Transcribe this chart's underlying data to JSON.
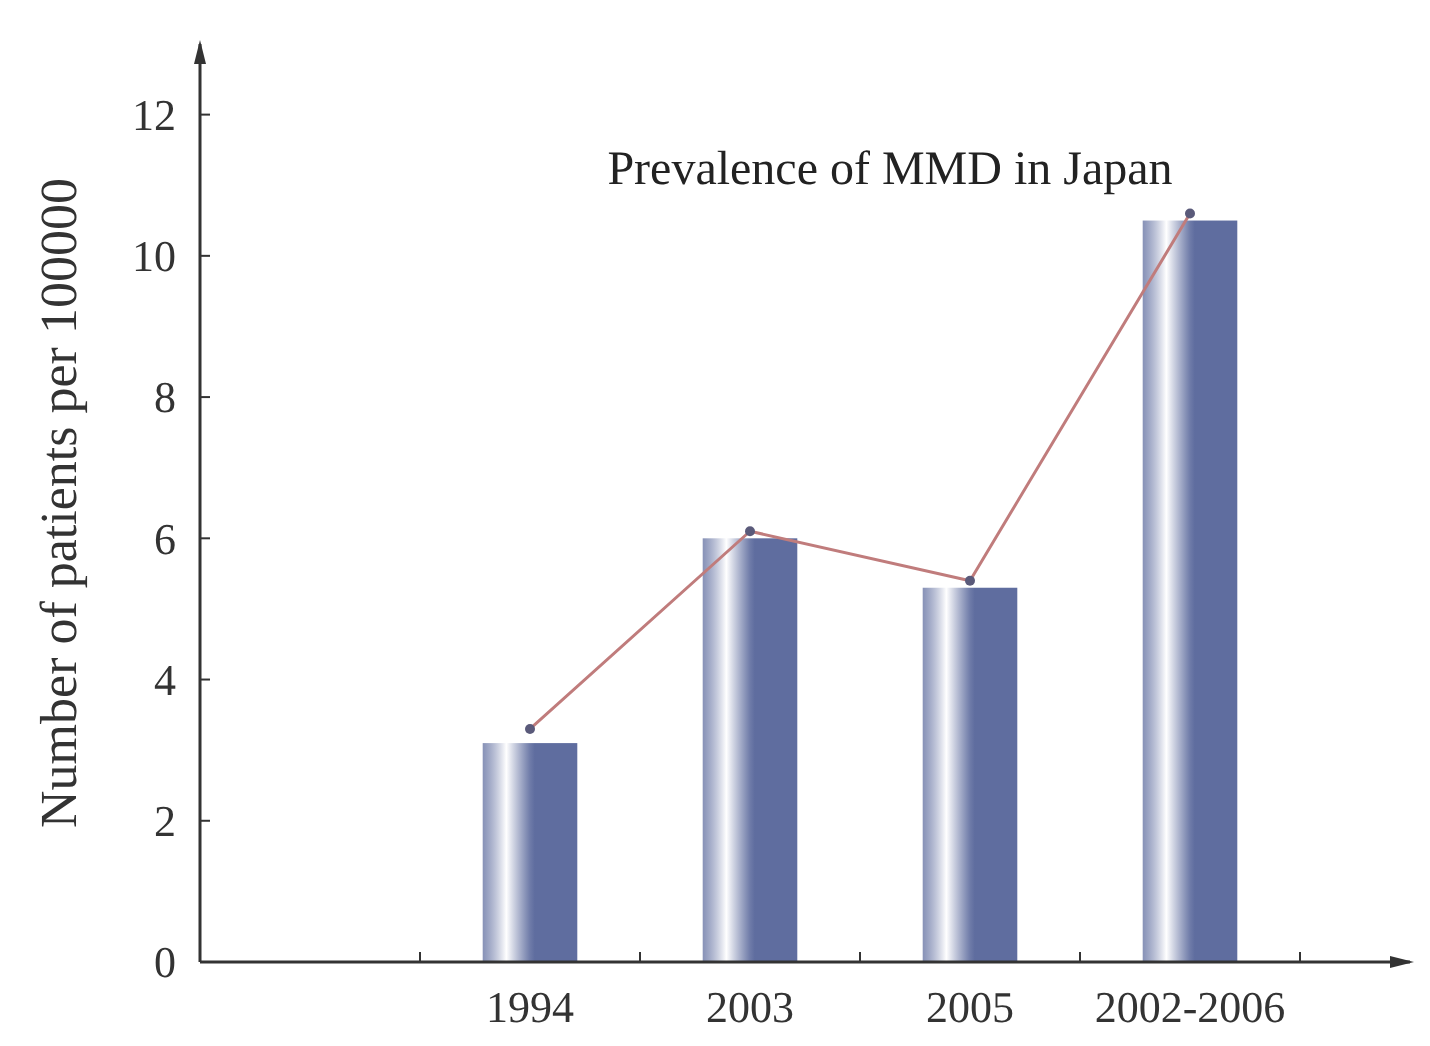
{
  "chart_data": {
    "type": "bar",
    "title": "Prevalence of MMD in Japan",
    "ylabel": "Number of patients per 100000",
    "categories": [
      null,
      "1994",
      "2003",
      "2005",
      "2002-2006"
    ],
    "series": [
      {
        "color": "#5f6d9f",
        "values": [
          null,
          3.1,
          6.0,
          5.3,
          10.5
        ]
      },
      {
        "type": "line",
        "color": "#c07c7c",
        "values": [
          null,
          3.3,
          6.1,
          5.4,
          10.6
        ],
        "marker": "circle"
      }
    ],
    "ylim": [
      0,
      13
    ],
    "yticks": [
      0,
      2,
      4,
      6,
      8,
      10,
      12
    ],
    "grid": false
  }
}
